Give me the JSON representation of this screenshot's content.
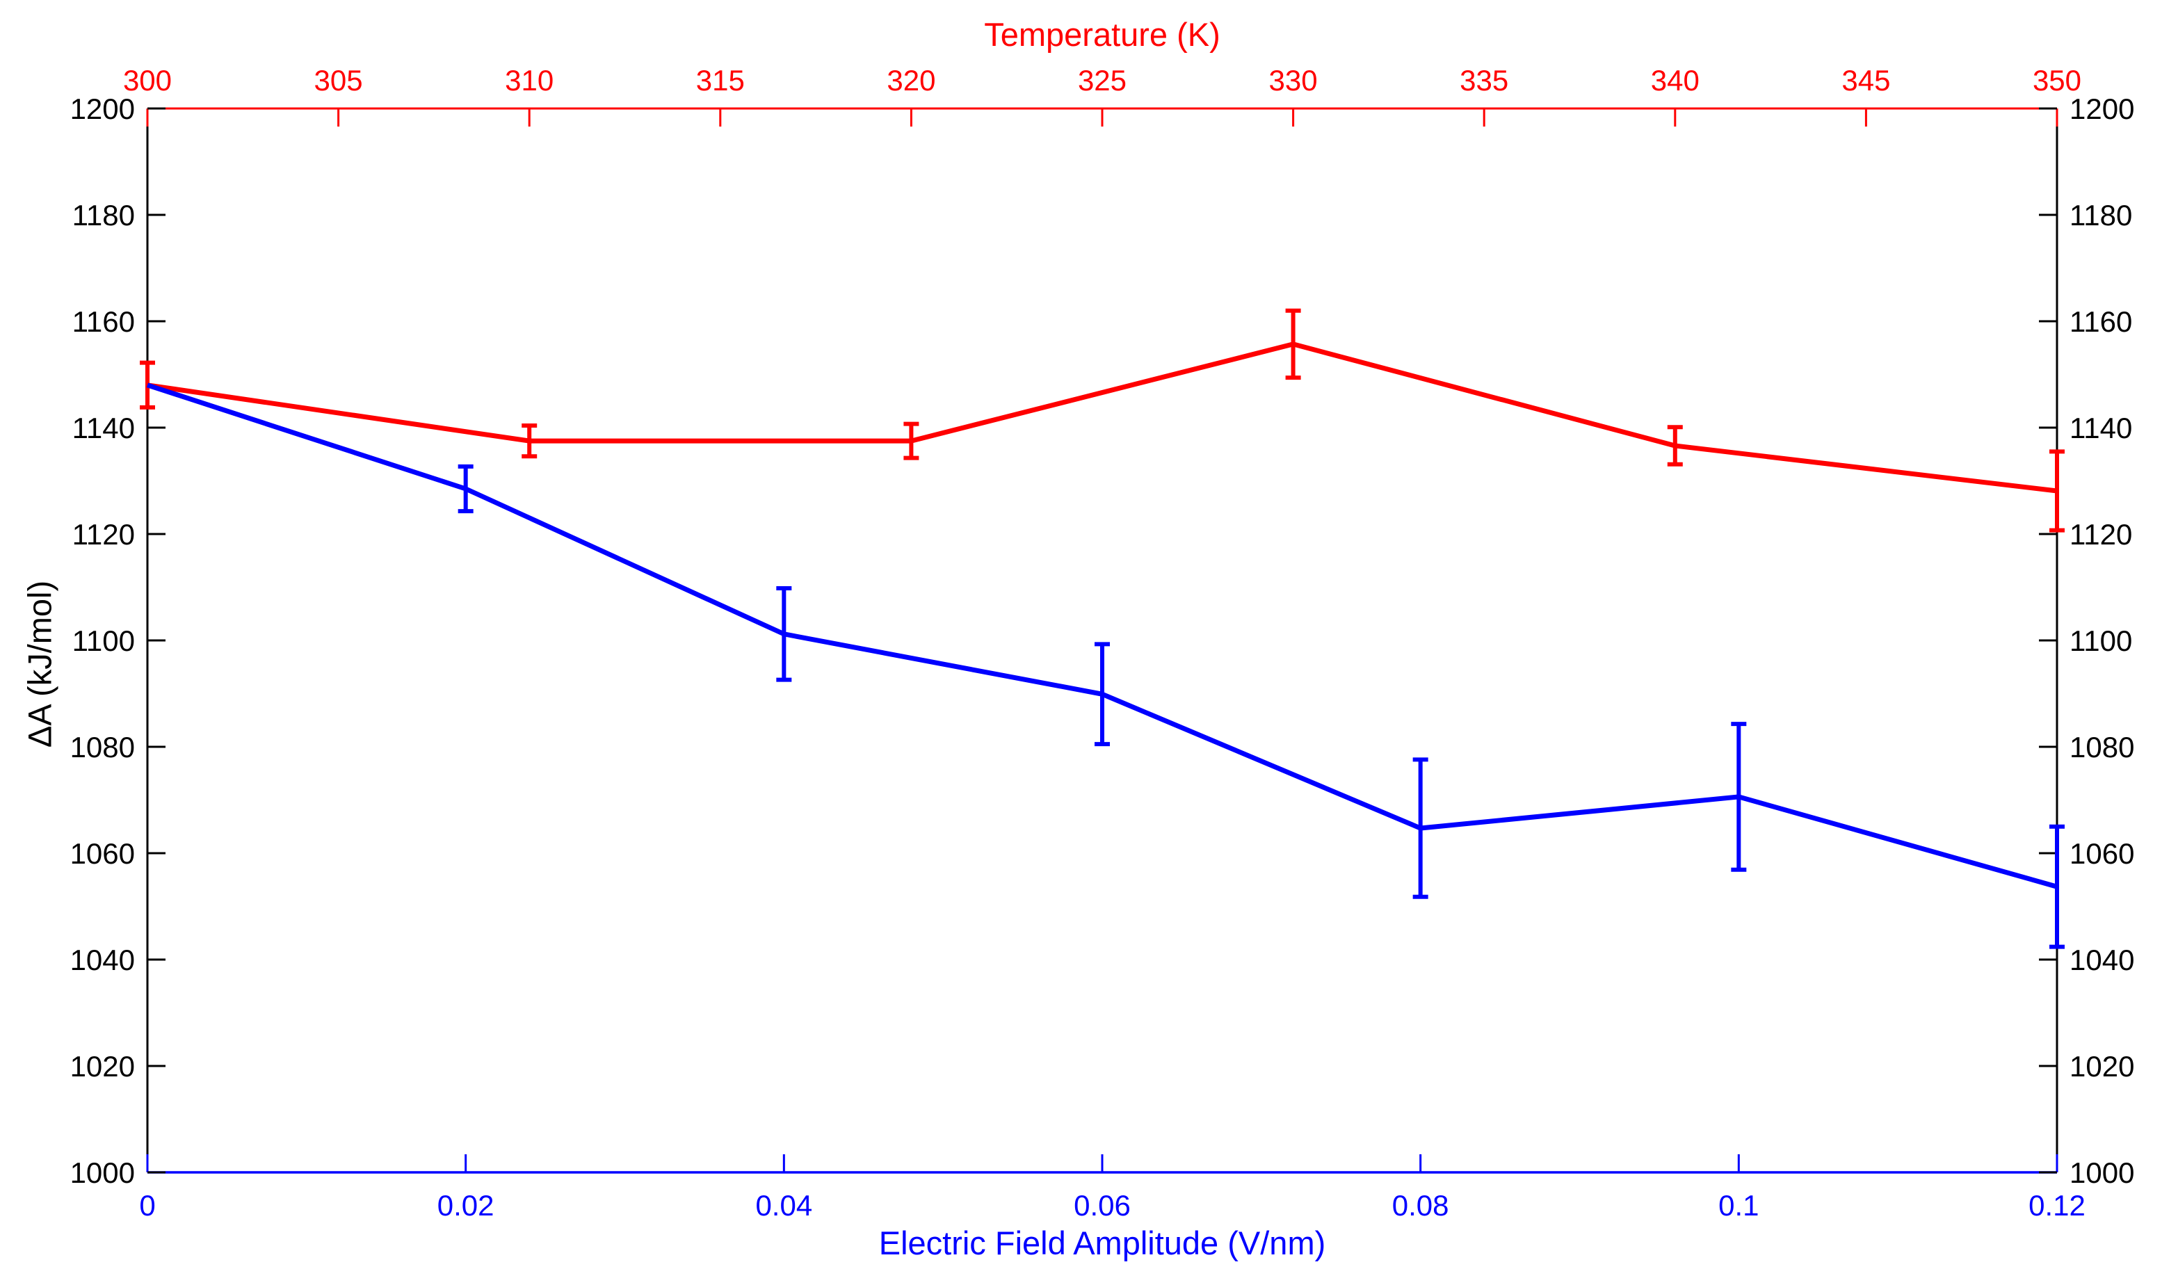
{
  "chart_data": {
    "type": "line",
    "title": "",
    "grid": false,
    "legend": "none",
    "background_color": "#ffffff",
    "bottom_axis": {
      "label": "Electric Field Amplitude (V/nm)",
      "color": "#0000ff",
      "range": [
        0,
        0.12
      ],
      "ticks": [
        {
          "v": 0,
          "label": "0"
        },
        {
          "v": 0.02,
          "label": "0.02"
        },
        {
          "v": 0.04,
          "label": "0.04"
        },
        {
          "v": 0.06,
          "label": "0.06"
        },
        {
          "v": 0.08,
          "label": "0.08"
        },
        {
          "v": 0.1,
          "label": "0.1"
        },
        {
          "v": 0.12,
          "label": "0.12"
        }
      ]
    },
    "top_axis": {
      "label": "Temperature (K)",
      "color": "#ff0000",
      "range": [
        300,
        350
      ],
      "ticks": [
        {
          "v": 300,
          "label": "300"
        },
        {
          "v": 305,
          "label": "305"
        },
        {
          "v": 310,
          "label": "310"
        },
        {
          "v": 315,
          "label": "315"
        },
        {
          "v": 320,
          "label": "320"
        },
        {
          "v": 325,
          "label": "325"
        },
        {
          "v": 330,
          "label": "330"
        },
        {
          "v": 335,
          "label": "335"
        },
        {
          "v": 340,
          "label": "340"
        },
        {
          "v": 345,
          "label": "345"
        },
        {
          "v": 350,
          "label": "350"
        }
      ]
    },
    "y_axis": {
      "label": "ΔA (kJ/mol)",
      "color": "#000000",
      "range": [
        1000,
        1200
      ],
      "ticks": [
        {
          "v": 1000,
          "label": "1000"
        },
        {
          "v": 1020,
          "label": "1020"
        },
        {
          "v": 1040,
          "label": "1040"
        },
        {
          "v": 1060,
          "label": "1060"
        },
        {
          "v": 1080,
          "label": "1080"
        },
        {
          "v": 1100,
          "label": "1100"
        },
        {
          "v": 1120,
          "label": "1120"
        },
        {
          "v": 1140,
          "label": "1140"
        },
        {
          "v": 1160,
          "label": "1160"
        },
        {
          "v": 1180,
          "label": "1180"
        },
        {
          "v": 1200,
          "label": "1200"
        }
      ],
      "tick_labels_on_right": true
    },
    "series": [
      {
        "name": "temperature-series",
        "color": "#ff0000",
        "x_axis": "top",
        "x": [
          300,
          310,
          320,
          330,
          340,
          350
        ],
        "y": [
          1148,
          1137.5,
          1137.5,
          1155.7,
          1136.6,
          1128.1
        ],
        "yerr": [
          4.2,
          2.9,
          3.2,
          6.3,
          3.5,
          7.4
        ]
      },
      {
        "name": "field-series",
        "color": "#0000ff",
        "x_axis": "bottom",
        "x": [
          0,
          0.02,
          0.04,
          0.06,
          0.08,
          0.1,
          0.12
        ],
        "y": [
          1148,
          1128.5,
          1101.2,
          1089.9,
          1064.7,
          1070.6,
          1053.7
        ],
        "yerr": [
          0,
          4.2,
          8.6,
          9.4,
          12.9,
          13.7,
          11.3
        ]
      }
    ]
  }
}
